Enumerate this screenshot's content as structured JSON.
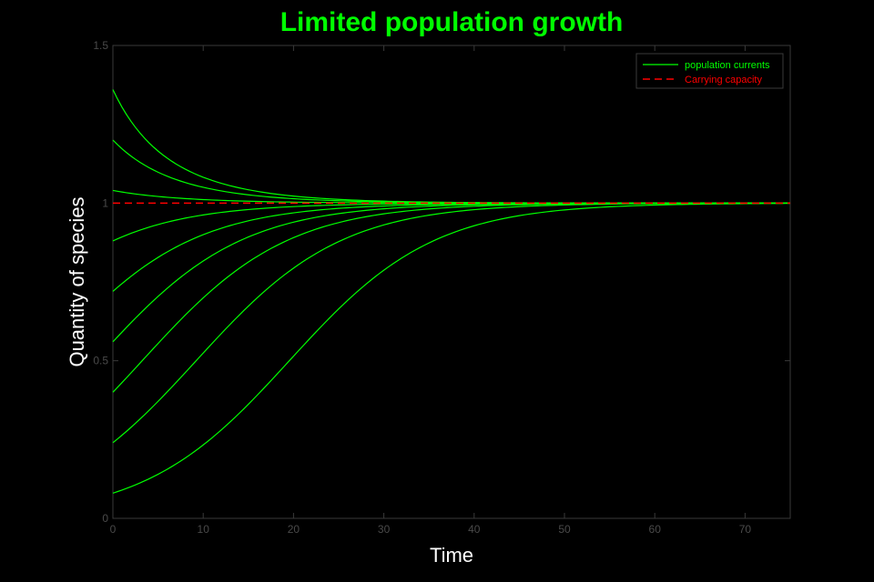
{
  "chart_data": {
    "type": "line",
    "title": "Limited population growth",
    "xlabel": "Time",
    "ylabel": "Quantity of species",
    "xlim": [
      0,
      75
    ],
    "ylim": [
      0,
      1.5
    ],
    "xticks": [
      0,
      10,
      20,
      30,
      40,
      50,
      60,
      70
    ],
    "yticks": [
      0,
      0.5,
      1,
      1.5
    ],
    "ytick_labels": [
      "0",
      "0.5",
      "1",
      "1.5"
    ],
    "grid": false,
    "legend_position": "top-right",
    "colors": {
      "background": "#000000",
      "title": "#00ff00",
      "population": "#00ff00",
      "capacity": "#ff0000",
      "axes": "#3a3a3a"
    },
    "legend": [
      {
        "label": "population currents",
        "style": "solid",
        "color": "#00ff00"
      },
      {
        "label": "Carrying capacity",
        "style": "dashed",
        "color": "#ff0000"
      }
    ],
    "rate": 0.125,
    "carrying_capacity": 1,
    "series": [
      {
        "initial": 1.36
      },
      {
        "initial": 1.2
      },
      {
        "initial": 1.04
      },
      {
        "initial": 0.88
      },
      {
        "initial": 0.72
      },
      {
        "initial": 0.56
      },
      {
        "initial": 0.4
      },
      {
        "initial": 0.24
      },
      {
        "initial": 0.08
      }
    ]
  }
}
